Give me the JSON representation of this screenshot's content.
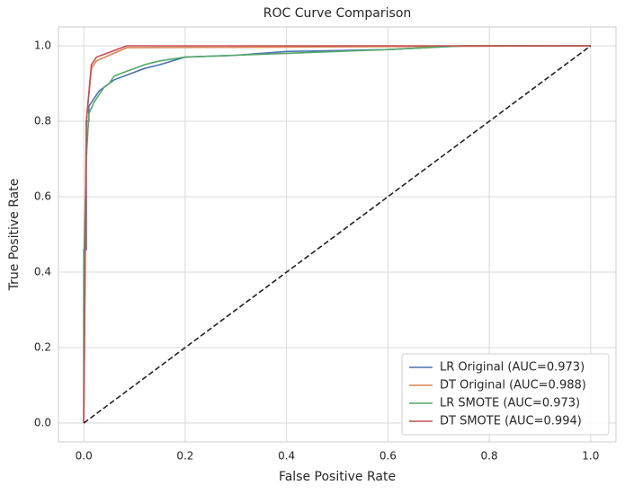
{
  "chart_data": {
    "type": "line",
    "title": "ROC Curve Comparison",
    "xlabel": "False Positive Rate",
    "ylabel": "True Positive Rate",
    "xlim": [
      -0.05,
      1.05
    ],
    "ylim": [
      -0.05,
      1.05
    ],
    "xticks": [
      {
        "value": 0,
        "label": "0.0"
      },
      0.2,
      0.4,
      0.6,
      0.8,
      {
        "value": 1,
        "label": "1.0"
      }
    ],
    "yticks": [
      {
        "value": 0,
        "label": "0.0"
      },
      0.2,
      0.4,
      0.6,
      0.8,
      {
        "value": 1,
        "label": "1.0"
      }
    ],
    "grid": true,
    "legend": "lower right",
    "series": [
      {
        "name": "LR Original (AUC=0.973)",
        "color": "#4c72b0",
        "x": [
          0,
          0,
          0.005,
          0.005,
          0.01,
          0.01,
          0.02,
          0.03,
          0.04,
          0.05,
          0.06,
          0.08,
          0.1,
          0.12,
          0.15,
          0.2,
          0.3,
          0.35,
          0.4,
          0.6,
          0.75,
          1
        ],
        "values": [
          0,
          0.46,
          0.46,
          0.8,
          0.8,
          0.84,
          0.86,
          0.88,
          0.89,
          0.9,
          0.91,
          0.92,
          0.93,
          0.94,
          0.95,
          0.97,
          0.975,
          0.98,
          0.985,
          0.99,
          1,
          1
        ]
      },
      {
        "name": "DT Original (AUC=0.988)",
        "color": "#dd8452",
        "x": [
          0,
          0.005,
          0.015,
          0.025,
          0.085,
          1
        ],
        "values": [
          0,
          0.8,
          0.94,
          0.96,
          0.995,
          1
        ]
      },
      {
        "name": "LR SMOTE (AUC=0.973)",
        "color": "#55a868",
        "x": [
          0,
          0,
          0.005,
          0.01,
          0.02,
          0.03,
          0.04,
          0.05,
          0.06,
          0.08,
          0.1,
          0.12,
          0.15,
          0.2,
          0.3,
          0.4,
          0.6,
          0.75,
          1
        ],
        "values": [
          0,
          0.42,
          0.7,
          0.82,
          0.85,
          0.87,
          0.89,
          0.9,
          0.92,
          0.93,
          0.94,
          0.95,
          0.96,
          0.97,
          0.975,
          0.98,
          0.99,
          1,
          1
        ]
      },
      {
        "name": "DT SMOTE (AUC=0.994)",
        "color": "#c44e52",
        "x": [
          0,
          0.005,
          0.015,
          0.025,
          0.085,
          1
        ],
        "values": [
          0,
          0.8,
          0.95,
          0.97,
          1,
          1
        ]
      }
    ],
    "reference_line": {
      "x": [
        0,
        1
      ],
      "values": [
        0,
        1
      ],
      "color": "#222222",
      "dash": true
    }
  }
}
